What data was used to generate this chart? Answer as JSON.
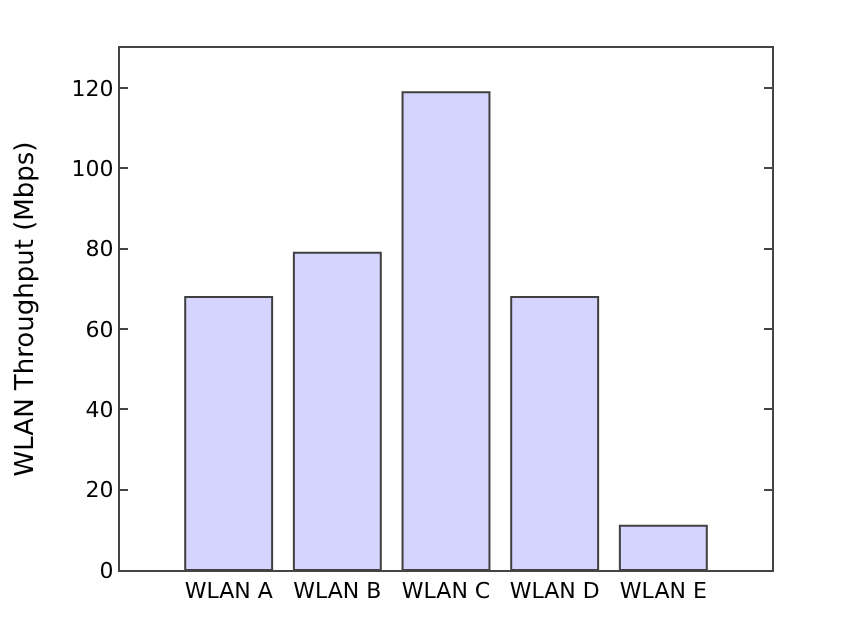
{
  "chart_data": {
    "type": "bar",
    "ylabel": "WLAN Throughput (Mbps)",
    "categories": [
      "WLAN A",
      "WLAN B",
      "WLAN C",
      "WLAN D",
      "WLAN E"
    ],
    "values": [
      68,
      79,
      119,
      68,
      11
    ],
    "color": "#d4d4ff",
    "ylim": [
      0,
      130
    ],
    "yticks": [
      0,
      20,
      40,
      60,
      80,
      100,
      120
    ]
  }
}
